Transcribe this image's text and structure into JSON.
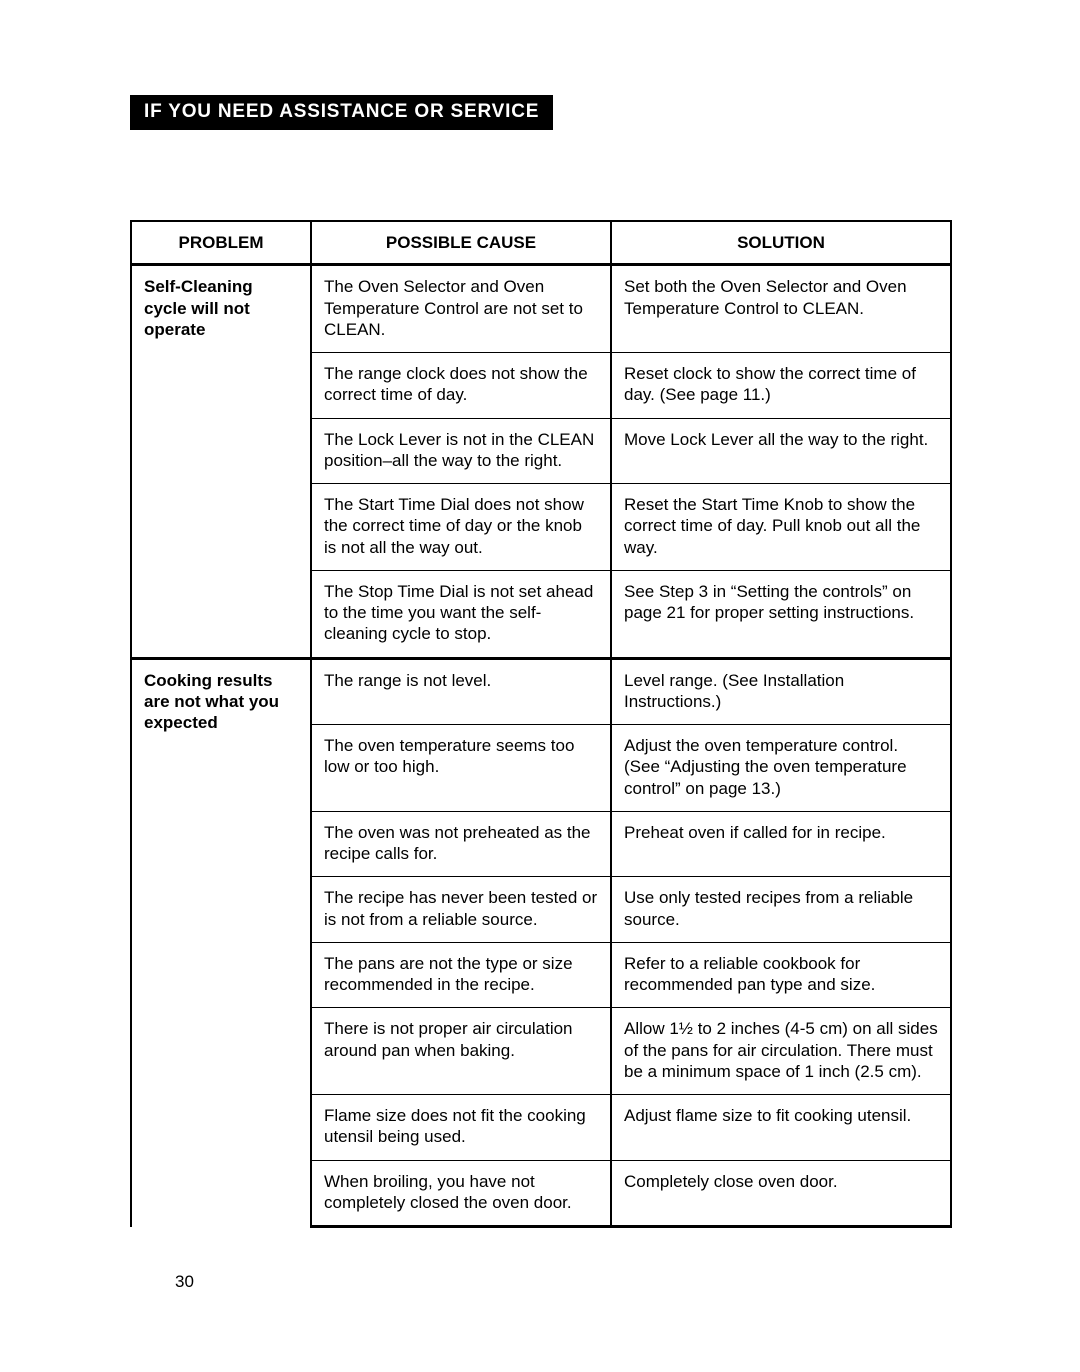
{
  "header": "IF YOU NEED ASSISTANCE OR SERVICE",
  "table": {
    "headers": {
      "problem": "PROBLEM",
      "cause": "POSSIBLE CAUSE",
      "solution": "SOLUTION"
    },
    "groups": [
      {
        "problem": "Self-Cleaning cycle will not operate",
        "rows": [
          {
            "cause": "The Oven Selector and Oven Temperature Control are not set to CLEAN.",
            "solution": "Set both the Oven Selector and Oven Temperature Control to CLEAN."
          },
          {
            "cause": "The range clock does not show the correct time of day.",
            "solution": "Reset clock to show the correct time of day. (See page 11.)"
          },
          {
            "cause": "The Lock Lever is not in the CLEAN position–all the way to the right.",
            "solution": "Move Lock Lever all the way to the right."
          },
          {
            "cause": "The Start Time Dial does not show the correct time of day or the knob is not all the way out.",
            "solution": "Reset the Start Time Knob to show the correct time of day. Pull knob out all the way."
          },
          {
            "cause": "The Stop Time Dial is not set ahead to the time you want the self-cleaning cycle to stop.",
            "solution": "See Step 3 in “Setting the controls” on page 21 for proper setting instructions."
          }
        ]
      },
      {
        "problem": "Cooking results are not what you expected",
        "rows": [
          {
            "cause": "The range is not level.",
            "solution": "Level range. (See Installation Instructions.)"
          },
          {
            "cause": "The oven temperature seems too low or too high.",
            "solution": "Adjust the oven temperature control. (See “Adjusting the oven temperature control” on page 13.)"
          },
          {
            "cause": "The oven was not preheated as the recipe calls for.",
            "solution": "Preheat oven if called for in recipe."
          },
          {
            "cause": "The recipe has never been tested or is not from a reliable source.",
            "solution": "Use only tested recipes from a reliable source."
          },
          {
            "cause": "The pans are not the type or size recommended in the recipe.",
            "solution": "Refer to a reliable cookbook for recommended pan type and size."
          },
          {
            "cause": "There is not proper air circulation around pan when baking.",
            "solution": "Allow 1½ to 2 inches (4-5 cm) on all sides of the pans for air circulation. There must be a minimum space of 1 inch (2.5 cm)."
          },
          {
            "cause": "Flame size does not fit the cooking utensil being used.",
            "solution": "Adjust flame size to fit cooking utensil."
          },
          {
            "cause": "When broiling, you have not completely closed the oven door.",
            "solution": "Completely close oven door."
          }
        ]
      }
    ]
  },
  "page_number": "30"
}
